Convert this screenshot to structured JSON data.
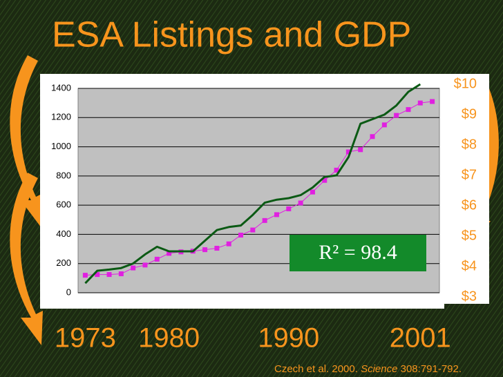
{
  "chart_data": {
    "type": "line",
    "title": "ESA Listings and GDP",
    "annotation": "R² = 98.4",
    "citation": {
      "pre": "Czech et al. 2000. ",
      "journal": "Science",
      "post": " 308:791-792."
    },
    "x": [
      1973,
      1974,
      1975,
      1976,
      1977,
      1978,
      1979,
      1980,
      1981,
      1982,
      1983,
      1984,
      1985,
      1986,
      1987,
      1988,
      1989,
      1990,
      1991,
      1992,
      1993,
      1994,
      1995,
      1996,
      1997,
      1998,
      1999,
      2000,
      2001,
      2002
    ],
    "xlim": [
      1972.4,
      2002.6
    ],
    "xticks": [
      1973,
      1980,
      1990,
      2001
    ],
    "ylim": [
      0,
      1400
    ],
    "yticks": [
      0,
      200,
      400,
      600,
      800,
      1000,
      1200,
      1400
    ],
    "y2lim": [
      3,
      10
    ],
    "y2ticks": [
      {
        "value": 3,
        "label": "$3"
      },
      {
        "value": 4,
        "label": "$4"
      },
      {
        "value": 5,
        "label": "$5"
      },
      {
        "value": 6,
        "label": "$6"
      },
      {
        "value": 7,
        "label": "$7"
      },
      {
        "value": 8,
        "label": "$8"
      },
      {
        "value": 9,
        "label": "$9"
      },
      {
        "value": 10,
        "label": "$10"
      }
    ],
    "grid": true,
    "series": [
      {
        "color": "#e020e0",
        "marker": "square",
        "values": [
          120,
          125,
          125,
          130,
          170,
          190,
          230,
          270,
          280,
          285,
          295,
          305,
          335,
          395,
          430,
          495,
          535,
          575,
          615,
          690,
          770,
          840,
          965,
          980,
          1070,
          1150,
          1215,
          1255,
          1300,
          1310
        ]
      },
      {
        "color": "#0b5a14",
        "axis": "y2",
        "values": [
          3.45,
          3.86,
          3.9,
          3.95,
          4.1,
          4.4,
          4.65,
          4.5,
          4.5,
          4.5,
          4.85,
          5.2,
          5.3,
          5.35,
          5.7,
          6.1,
          6.2,
          6.25,
          6.35,
          6.6,
          6.95,
          7.0,
          7.6,
          8.7,
          8.85,
          9.0,
          9.3,
          9.75,
          10.0,
          null
        ]
      }
    ]
  }
}
